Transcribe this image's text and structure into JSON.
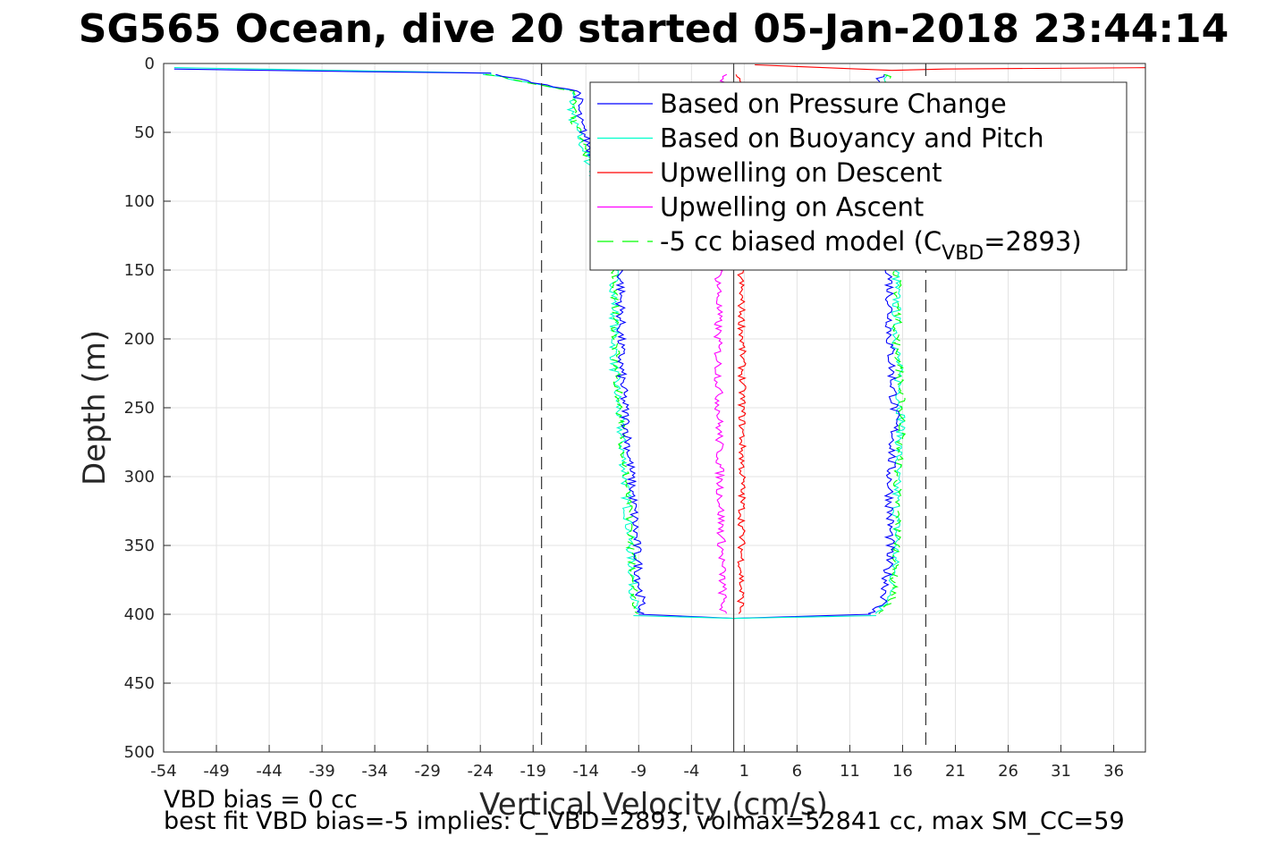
{
  "chart_data": {
    "type": "line",
    "title": "SG565 Ocean, dive 20 started 05-Jan-2018 23:44:14",
    "xlabel": "Vertical Velocity (cm/s)",
    "ylabel": "Depth (m)",
    "xlim": [
      -54,
      39
    ],
    "ylim": [
      500,
      0
    ],
    "xticks": [
      "-54",
      "-49",
      "-44",
      "-39",
      "-34",
      "-29",
      "-24",
      "-19",
      "-14",
      "-9",
      "-4",
      "1",
      "6",
      "11",
      "16",
      "21",
      "26",
      "31",
      "36"
    ],
    "yticks": [
      "0",
      "50",
      "100",
      "150",
      "200",
      "250",
      "300",
      "350",
      "400",
      "450",
      "500"
    ],
    "grid": true,
    "legend_position": "top-right",
    "legend": [
      {
        "label": "Based on Pressure Change",
        "color": "#0000ff",
        "style": "solid"
      },
      {
        "label": "Based on Buoyancy and Pitch",
        "color": "#00ffcc",
        "style": "solid"
      },
      {
        "label": "Upwelling on Descent",
        "color": "#ff0000",
        "style": "solid"
      },
      {
        "label": "Upwelling on Ascent",
        "color": "#ff00ff",
        "style": "solid"
      },
      {
        "label_prefix": "-5 cc biased model (C",
        "label_sub": "VBD",
        "label_suffix": "=2893)",
        "color": "#00ff00",
        "style": "dashed"
      }
    ],
    "reference_lines": {
      "vertical_dashed_x": [
        -18.2,
        18.2
      ],
      "vertical_solid_x": 0
    }
  },
  "footnotes": {
    "line1": "VBD bias = 0 cc",
    "line2": "best fit VBD bias=-5 implies: C_VBD=2893, volmax=52841 cc, max SM_CC=59"
  }
}
